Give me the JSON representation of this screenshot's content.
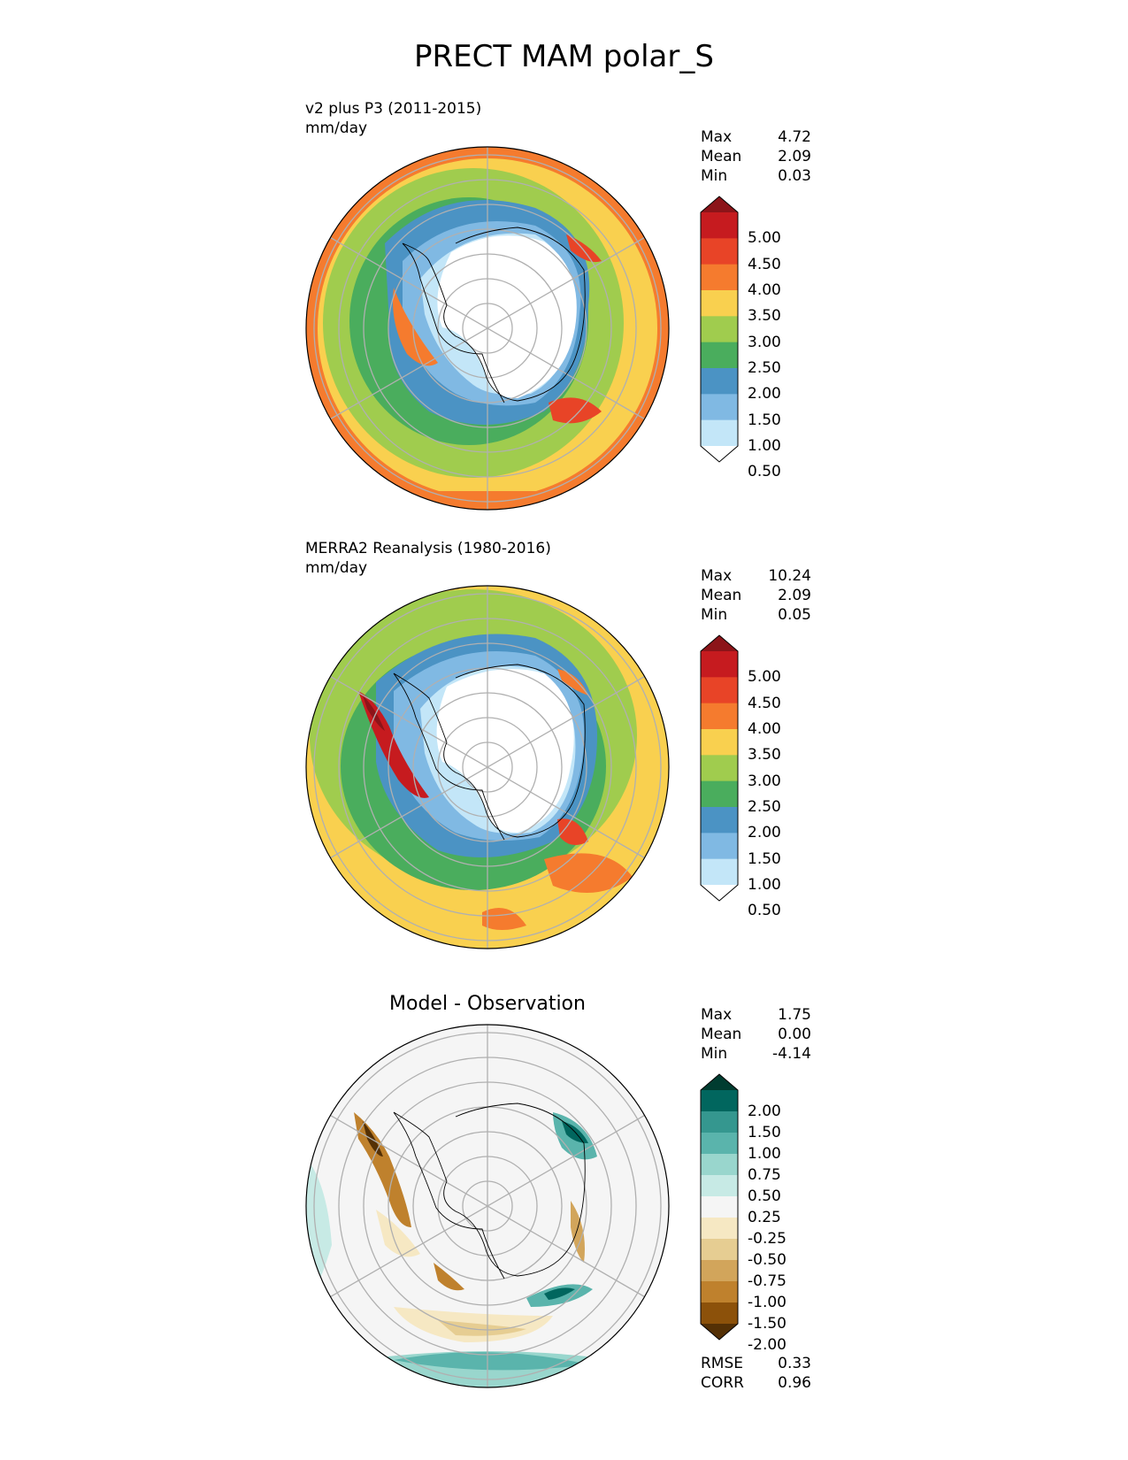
{
  "title": "PRECT MAM polar_S",
  "panels": [
    {
      "name": "test",
      "label_line1": "v2 plus P3 (2011-2015)",
      "label_line2": "mm/day",
      "stats": [
        {
          "label": "Max",
          "value": "4.72"
        },
        {
          "label": "Mean",
          "value": "2.09"
        },
        {
          "label": "Min",
          "value": "0.03"
        }
      ],
      "colorbar": {
        "labels": [
          "5.00",
          "4.50",
          "4.00",
          "3.50",
          "3.00",
          "2.50",
          "2.00",
          "1.50",
          "1.00",
          "0.50"
        ],
        "colors": [
          "#8c1419",
          "#c61b1f",
          "#e84427",
          "#f57b2e",
          "#f9d04f",
          "#a0cc4e",
          "#4aad5d",
          "#4b93c4",
          "#80b9e3",
          "#c3e6f8",
          "#ffffff"
        ]
      }
    },
    {
      "name": "reference",
      "label_line1": "MERRA2 Reanalysis (1980-2016)",
      "label_line2": "mm/day",
      "stats": [
        {
          "label": "Max",
          "value": "10.24"
        },
        {
          "label": "Mean",
          "value": "2.09"
        },
        {
          "label": "Min",
          "value": "0.05"
        }
      ],
      "colorbar": {
        "labels": [
          "5.00",
          "4.50",
          "4.00",
          "3.50",
          "3.00",
          "2.50",
          "2.00",
          "1.50",
          "1.00",
          "0.50"
        ],
        "colors": [
          "#8c1419",
          "#c61b1f",
          "#e84427",
          "#f57b2e",
          "#f9d04f",
          "#a0cc4e",
          "#4aad5d",
          "#4b93c4",
          "#80b9e3",
          "#c3e6f8",
          "#ffffff"
        ]
      }
    },
    {
      "name": "difference",
      "title": "Model - Observation",
      "stats": [
        {
          "label": "Max",
          "value": "1.75"
        },
        {
          "label": "Mean",
          "value": "0.00"
        },
        {
          "label": "Min",
          "value": "-4.14"
        }
      ],
      "colorbar": {
        "labels": [
          "2.00",
          "1.50",
          "1.00",
          "0.75",
          "0.50",
          "0.25",
          "-0.25",
          "-0.50",
          "-0.75",
          "-1.00",
          "-1.50",
          "-2.00"
        ],
        "colors": [
          "#003c30",
          "#01665e",
          "#35978f",
          "#5ab4ac",
          "#99d6cd",
          "#c7eae5",
          "#f5f5f5",
          "#f6e8c3",
          "#e6cd92",
          "#d2a55b",
          "#bf812d",
          "#8c510a",
          "#543005"
        ]
      },
      "metrics": [
        {
          "label": "RMSE",
          "value": "0.33"
        },
        {
          "label": "CORR",
          "value": "0.96"
        }
      ]
    }
  ]
}
